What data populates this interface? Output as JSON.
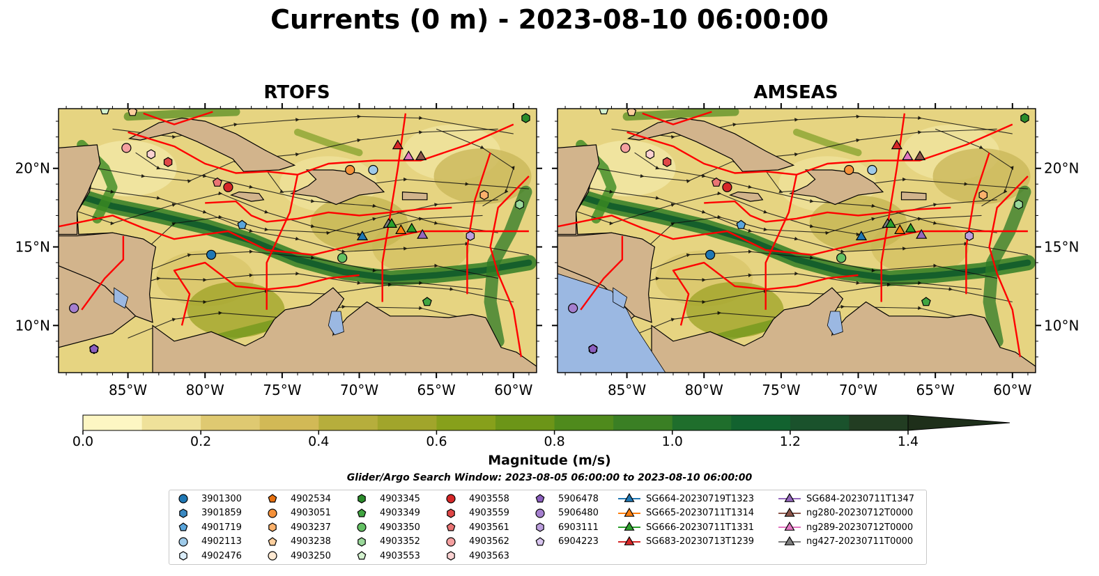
{
  "figure": {
    "title": "Currents (0 m) - 2023-08-10 06:00:00",
    "panels": [
      {
        "name": "RTOFS"
      },
      {
        "name": "AMSEAS"
      }
    ],
    "lon_ticks": [
      "85°W",
      "80°W",
      "75°W",
      "70°W",
      "65°W",
      "60°W"
    ],
    "lat_ticks": [
      "20°N",
      "15°N",
      "10°N"
    ],
    "extent": {
      "lon_min": -89.5,
      "lon_max": -58.5,
      "lat_min": 7,
      "lat_max": 23.8
    }
  },
  "colorbar": {
    "label": "Magnitude (m/s)",
    "ticks": [
      "0.0",
      "0.2",
      "0.4",
      "0.6",
      "0.8",
      "1.0",
      "1.2",
      "1.4"
    ],
    "min": 0.0,
    "max": 1.5,
    "step": 0.1,
    "colors": [
      "#fdf6c3",
      "#efe19a",
      "#dfc971",
      "#d2b956",
      "#b6ae3c",
      "#a1a52b",
      "#87a01b",
      "#6c9518",
      "#4f8a1c",
      "#3a7f24",
      "#1f6e2c",
      "#12622f",
      "#1a522c",
      "#223d22",
      "#1e2f1a"
    ]
  },
  "search_window": "Glider/Argo Search Window: 2023-08-05 06:00:00 to 2023-08-10 06:00:00",
  "legend": {
    "columns": [
      [
        {
          "label": "3901300",
          "marker": "circle",
          "color": "#1f77b4"
        },
        {
          "label": "3901859",
          "marker": "hexagon",
          "color": "#3a89c2"
        },
        {
          "label": "4901719",
          "marker": "pentagon",
          "color": "#5aa5dc"
        },
        {
          "label": "4902113",
          "marker": "circle",
          "color": "#9ecae9"
        },
        {
          "label": "4902476",
          "marker": "hexagon",
          "color": "#dbeefb"
        }
      ],
      [
        {
          "label": "4902534",
          "marker": "pentagon",
          "color": "#e6700f"
        },
        {
          "label": "4903051",
          "marker": "circle",
          "color": "#f5913a"
        },
        {
          "label": "4903237",
          "marker": "hexagon",
          "color": "#fbb16b"
        },
        {
          "label": "4903238",
          "marker": "pentagon",
          "color": "#fdcf9e"
        },
        {
          "label": "4903250",
          "marker": "circle",
          "color": "#fee9d2"
        }
      ],
      [
        {
          "label": "4903345",
          "marker": "hexagon",
          "color": "#2b8c2b"
        },
        {
          "label": "4903349",
          "marker": "pentagon",
          "color": "#41a541"
        },
        {
          "label": "4903350",
          "marker": "circle",
          "color": "#63c063"
        },
        {
          "label": "4903352",
          "marker": "hexagon",
          "color": "#9ad89a"
        },
        {
          "label": "4903553",
          "marker": "pentagon",
          "color": "#d4f2cf"
        }
      ],
      [
        {
          "label": "4903558",
          "marker": "circle",
          "color": "#d62728"
        },
        {
          "label": "4903559",
          "marker": "hexagon",
          "color": "#e04747"
        },
        {
          "label": "4903561",
          "marker": "pentagon",
          "color": "#ea7474"
        },
        {
          "label": "4903562",
          "marker": "circle",
          "color": "#f4a0a0"
        },
        {
          "label": "4903563",
          "marker": "hexagon",
          "color": "#fbd2d2"
        }
      ],
      [
        {
          "label": "5906478",
          "marker": "pentagon",
          "color": "#8c5fbf"
        },
        {
          "label": "5906480",
          "marker": "circle",
          "color": "#a57fcf"
        },
        {
          "label": "6903111",
          "marker": "hexagon",
          "color": "#bc9fde"
        },
        {
          "label": "6904223",
          "marker": "pentagon",
          "color": "#d8c5ef"
        }
      ],
      [
        {
          "label": "SG664-20230719T1323",
          "marker": "triangle",
          "color": "#1f77b4"
        },
        {
          "label": "SG665-20230711T1314",
          "marker": "triangle",
          "color": "#ff7f0e"
        },
        {
          "label": "SG666-20230711T1331",
          "marker": "triangle",
          "color": "#2ca02c"
        },
        {
          "label": "SG683-20230713T1239",
          "marker": "triangle",
          "color": "#d62728"
        }
      ],
      [
        {
          "label": "SG684-20230711T1347",
          "marker": "triangle",
          "color": "#9467bd"
        },
        {
          "label": "ng280-20230712T0000",
          "marker": "triangle",
          "color": "#8c564b"
        },
        {
          "label": "ng289-20230712T0000",
          "marker": "triangle",
          "color": "#e377c2"
        },
        {
          "label": "ng427-20230711T0000",
          "marker": "triangle",
          "color": "#7f7f7f"
        }
      ]
    ]
  },
  "observations": [
    {
      "label": "3901300",
      "lon": -79.6,
      "lat": 14.5
    },
    {
      "label": "3901859",
      "lon": -87.2,
      "lat": 8.5
    },
    {
      "label": "4901719",
      "lon": -77.6,
      "lat": 16.4
    },
    {
      "label": "4902113",
      "lon": -69.1,
      "lat": 19.9
    },
    {
      "label": "4903051",
      "lon": -70.6,
      "lat": 19.9
    },
    {
      "label": "4903238",
      "lon": -84.7,
      "lat": 23.6
    },
    {
      "label": "4903345",
      "lon": -59.2,
      "lat": 23.2
    },
    {
      "label": "4903350",
      "lon": -71.1,
      "lat": 14.3
    },
    {
      "label": "4903352",
      "lon": -59.6,
      "lat": 17.7
    },
    {
      "label": "4903349",
      "lon": -65.6,
      "lat": 11.5
    },
    {
      "label": "4903553",
      "lon": -86.5,
      "lat": 23.7
    },
    {
      "label": "4903558",
      "lon": -78.5,
      "lat": 18.8
    },
    {
      "label": "4903559",
      "lon": -82.4,
      "lat": 20.4
    },
    {
      "label": "4903561",
      "lon": -79.2,
      "lat": 19.1
    },
    {
      "label": "4903562",
      "lon": -85.1,
      "lat": 21.3
    },
    {
      "label": "4903563",
      "lon": -83.5,
      "lat": 20.9
    },
    {
      "label": "4903237",
      "lon": -61.9,
      "lat": 18.3
    },
    {
      "label": "5906478",
      "lon": -87.2,
      "lat": 8.5
    },
    {
      "label": "5906480",
      "lon": -88.5,
      "lat": 11.1
    },
    {
      "label": "6903111",
      "lon": -62.8,
      "lat": 15.7
    },
    {
      "label": "SG664-20230719T1323",
      "lon": -69.8,
      "lat": 15.7
    },
    {
      "label": "SG665-20230711T1314",
      "lon": -67.3,
      "lat": 16.1
    },
    {
      "label": "SG666-20230711T1331",
      "lon": -66.6,
      "lat": 16.2
    },
    {
      "label": "SG684-20230711T1347",
      "lon": -65.9,
      "lat": 15.8
    },
    {
      "label": "ng427-20230711T0000",
      "lon": -68.1,
      "lat": 16.5
    },
    {
      "label": "SG666-20230711T1331",
      "lon": -67.9,
      "lat": 16.5
    },
    {
      "label": "SG683-20230713T1239",
      "lon": -67.5,
      "lat": 21.5
    },
    {
      "label": "ng289-20230712T0000",
      "lon": -66.8,
      "lat": 20.8
    },
    {
      "label": "ng280-20230712T0000",
      "lon": -66.0,
      "lat": 20.8
    }
  ]
}
